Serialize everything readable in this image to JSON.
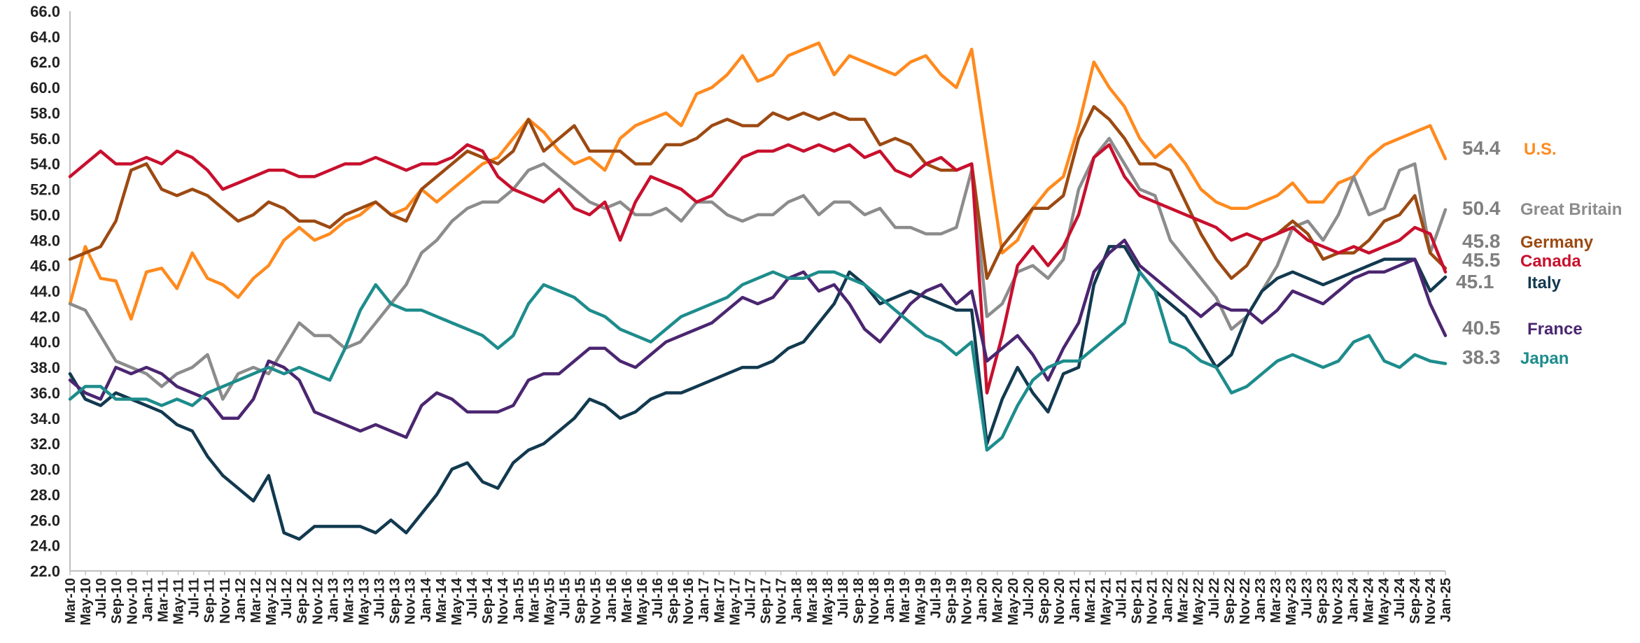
{
  "chart_data": {
    "type": "line",
    "title": "",
    "xlabel": "",
    "ylabel": "",
    "ylim": [
      22,
      66
    ],
    "y_ticks": [
      "22.0",
      "24.0",
      "26.0",
      "28.0",
      "30.0",
      "32.0",
      "34.0",
      "36.0",
      "38.0",
      "40.0",
      "42.0",
      "44.0",
      "46.0",
      "48.0",
      "50.0",
      "52.0",
      "54.0",
      "56.0",
      "58.0",
      "60.0",
      "62.0",
      "64.0",
      "66.0"
    ],
    "x_ticks": [
      "Mar-10",
      "May-10",
      "Jul-10",
      "Sep-10",
      "Nov-10",
      "Jan-11",
      "Mar-11",
      "May-11",
      "Jul-11",
      "Sep-11",
      "Nov-11",
      "Jan-12",
      "Mar-12",
      "May-12",
      "Jul-12",
      "Sep-12",
      "Nov-12",
      "Jan-13",
      "Mar-13",
      "May-13",
      "Jul-13",
      "Sep-13",
      "Nov-13",
      "Jan-14",
      "Mar-14",
      "May-14",
      "Jul-14",
      "Sep-14",
      "Nov-14",
      "Jan-15",
      "Mar-15",
      "May-15",
      "Jul-15",
      "Sep-15",
      "Nov-15",
      "Jan-16",
      "Mar-16",
      "May-16",
      "Jul-16",
      "Sep-16",
      "Nov-16",
      "Jan-17",
      "Mar-17",
      "May-17",
      "Jul-17",
      "Sep-17",
      "Nov-17",
      "Jan-18",
      "Mar-18",
      "May-18",
      "Jul-18",
      "Sep-18",
      "Nov-18",
      "Jan-19",
      "Mar-19",
      "May-19",
      "Jul-19",
      "Sep-19",
      "Nov-19",
      "Jan-20",
      "Mar-20",
      "May-20",
      "Jul-20",
      "Sep-20",
      "Nov-20",
      "Jan-21",
      "Mar-21",
      "May-21",
      "Jul-21",
      "Sep-21",
      "Nov-21",
      "Jan-22",
      "Mar-22",
      "May-22",
      "Jul-22",
      "Sep-22",
      "Nov-22",
      "Jan-23",
      "Mar-23",
      "May-23",
      "Jul-23",
      "Sep-23",
      "Nov-23",
      "Jan-24",
      "Mar-24",
      "May-24",
      "Jul-24",
      "Sep-24",
      "Nov-24",
      "Jan-25"
    ],
    "x_step_note": "bimonthly",
    "grid": false,
    "legend": "end-labels-right",
    "series": [
      {
        "name": "U.S.",
        "end_value": "54.4",
        "color": "#ff8a1e",
        "values": [
          43.0,
          47.5,
          45.0,
          44.8,
          41.8,
          45.5,
          45.8,
          44.2,
          47.0,
          45.0,
          44.5,
          43.5,
          45.0,
          46.0,
          48.0,
          49.0,
          48.0,
          48.5,
          49.5,
          50.0,
          51.0,
          50.0,
          50.5,
          52.0,
          51.0,
          52.0,
          53.0,
          54.0,
          54.5,
          56.0,
          57.5,
          56.5,
          55.0,
          54.0,
          54.5,
          53.5,
          56.0,
          57.0,
          57.5,
          58.0,
          57.0,
          59.5,
          60.0,
          61.0,
          62.5,
          60.5,
          61.0,
          62.5,
          63.0,
          63.5,
          61.0,
          62.5,
          62.0,
          61.5,
          61.0,
          62.0,
          62.5,
          61.0,
          60.0,
          63.0,
          55.0,
          47.0,
          48.0,
          50.5,
          52.0,
          53.0,
          57.0,
          62.0,
          60.0,
          58.5,
          56.0,
          54.5,
          55.5,
          54.0,
          52.0,
          51.0,
          50.5,
          50.5,
          51.0,
          51.5,
          52.5,
          51.0,
          51.0,
          52.5,
          53.0,
          54.5,
          55.5,
          56.0,
          56.5,
          57.0,
          54.4
        ]
      },
      {
        "name": "Great Britain",
        "end_value": "50.4",
        "color": "#8c8c8c",
        "values": [
          43.0,
          42.5,
          40.5,
          38.5,
          38.0,
          37.5,
          36.5,
          37.5,
          38.0,
          39.0,
          35.5,
          37.5,
          38.0,
          37.5,
          39.5,
          41.5,
          40.5,
          40.5,
          39.5,
          40.0,
          41.5,
          43.0,
          44.5,
          47.0,
          48.0,
          49.5,
          50.5,
          51.0,
          51.0,
          52.0,
          53.5,
          54.0,
          53.0,
          52.0,
          51.0,
          50.5,
          51.0,
          50.0,
          50.0,
          50.5,
          49.5,
          51.0,
          51.0,
          50.0,
          49.5,
          50.0,
          50.0,
          51.0,
          51.5,
          50.0,
          51.0,
          51.0,
          50.0,
          50.5,
          49.0,
          49.0,
          48.5,
          48.5,
          49.0,
          53.5,
          42.0,
          43.0,
          45.5,
          46.0,
          45.0,
          46.5,
          52.0,
          54.5,
          56.0,
          54.0,
          52.0,
          51.5,
          48.0,
          46.5,
          45.0,
          43.5,
          41.0,
          42.0,
          44.0,
          46.0,
          49.0,
          49.5,
          48.0,
          50.0,
          53.0,
          50.0,
          50.5,
          53.5,
          54.0,
          47.0,
          50.4
        ]
      },
      {
        "name": "Germany",
        "end_value": "45.8",
        "color": "#9c4a12",
        "values": [
          46.5,
          47.0,
          47.5,
          49.5,
          53.5,
          54.0,
          52.0,
          51.5,
          52.0,
          51.5,
          50.5,
          49.5,
          50.0,
          51.0,
          50.5,
          49.5,
          49.5,
          49.0,
          50.0,
          50.5,
          51.0,
          50.0,
          49.5,
          52.0,
          53.0,
          54.0,
          55.0,
          54.5,
          54.0,
          55.0,
          57.5,
          55.0,
          56.0,
          57.0,
          55.0,
          55.0,
          55.0,
          54.0,
          54.0,
          55.5,
          55.5,
          56.0,
          57.0,
          57.5,
          57.0,
          57.0,
          58.0,
          57.5,
          58.0,
          57.5,
          58.0,
          57.5,
          57.5,
          55.5,
          56.0,
          55.5,
          54.0,
          53.5,
          53.5,
          54.0,
          45.0,
          47.5,
          49.0,
          50.5,
          50.5,
          51.5,
          56.0,
          58.5,
          57.5,
          56.0,
          54.0,
          54.0,
          53.5,
          51.0,
          48.5,
          46.5,
          45.0,
          46.0,
          48.0,
          48.5,
          49.5,
          48.5,
          46.5,
          47.0,
          47.0,
          48.0,
          49.5,
          50.0,
          51.5,
          47.0,
          45.8
        ]
      },
      {
        "name": "Canada",
        "end_value": "45.5",
        "color": "#c8102e",
        "values": [
          53.0,
          54.0,
          55.0,
          54.0,
          54.0,
          54.5,
          54.0,
          55.0,
          54.5,
          53.5,
          52.0,
          52.5,
          53.0,
          53.5,
          53.5,
          53.0,
          53.0,
          53.5,
          54.0,
          54.0,
          54.5,
          54.0,
          53.5,
          54.0,
          54.0,
          54.5,
          55.5,
          55.0,
          53.0,
          52.0,
          51.5,
          51.0,
          52.0,
          50.5,
          50.0,
          51.0,
          48.0,
          51.0,
          53.0,
          52.5,
          52.0,
          51.0,
          51.5,
          53.0,
          54.5,
          55.0,
          55.0,
          55.5,
          55.0,
          55.5,
          55.0,
          55.5,
          54.5,
          55.0,
          53.5,
          53.0,
          54.0,
          54.5,
          53.5,
          54.0,
          36.0,
          40.5,
          46.0,
          47.5,
          46.0,
          47.5,
          50.0,
          54.5,
          55.5,
          53.0,
          51.5,
          51.0,
          50.5,
          50.0,
          49.5,
          49.0,
          48.0,
          48.5,
          48.0,
          48.5,
          49.0,
          48.0,
          47.5,
          47.0,
          47.5,
          47.0,
          47.5,
          48.0,
          49.0,
          48.5,
          45.5
        ]
      },
      {
        "name": "Italy",
        "end_value": "45.1",
        "color": "#12394f",
        "values": [
          37.5,
          35.5,
          35.0,
          36.0,
          35.5,
          35.0,
          34.5,
          33.5,
          33.0,
          31.0,
          29.5,
          28.5,
          27.5,
          29.5,
          25.0,
          24.5,
          25.5,
          25.5,
          25.5,
          25.5,
          25.0,
          26.0,
          25.0,
          26.5,
          28.0,
          30.0,
          30.5,
          29.0,
          28.5,
          30.5,
          31.5,
          32.0,
          33.0,
          34.0,
          35.5,
          35.0,
          34.0,
          34.5,
          35.5,
          36.0,
          36.0,
          36.5,
          37.0,
          37.5,
          38.0,
          38.0,
          38.5,
          39.5,
          40.0,
          41.5,
          43.0,
          45.5,
          44.5,
          43.0,
          43.5,
          44.0,
          43.5,
          43.0,
          42.5,
          42.5,
          32.0,
          35.5,
          38.0,
          36.0,
          34.5,
          37.5,
          38.0,
          44.5,
          47.5,
          47.5,
          45.5,
          44.0,
          43.0,
          42.0,
          40.0,
          38.0,
          39.0,
          42.0,
          44.0,
          45.0,
          45.5,
          45.0,
          44.5,
          45.0,
          45.5,
          46.0,
          46.5,
          46.5,
          46.5,
          44.0,
          45.1
        ]
      },
      {
        "name": "France",
        "end_value": "40.5",
        "color": "#4b2670",
        "values": [
          37.0,
          36.0,
          35.5,
          38.0,
          37.5,
          38.0,
          37.5,
          36.5,
          36.0,
          35.5,
          34.0,
          34.0,
          35.5,
          38.5,
          38.0,
          37.0,
          34.5,
          34.0,
          33.5,
          33.0,
          33.5,
          33.0,
          32.5,
          35.0,
          36.0,
          35.5,
          34.5,
          34.5,
          34.5,
          35.0,
          37.0,
          37.5,
          37.5,
          38.5,
          39.5,
          39.5,
          38.5,
          38.0,
          39.0,
          40.0,
          40.5,
          41.0,
          41.5,
          42.5,
          43.5,
          43.0,
          43.5,
          45.0,
          45.5,
          44.0,
          44.5,
          43.0,
          41.0,
          40.0,
          41.5,
          43.0,
          44.0,
          44.5,
          43.0,
          44.0,
          38.5,
          39.5,
          40.5,
          39.0,
          37.0,
          39.5,
          41.5,
          45.5,
          47.0,
          48.0,
          46.0,
          45.0,
          44.0,
          43.0,
          42.0,
          43.0,
          42.5,
          42.5,
          41.5,
          42.5,
          44.0,
          43.5,
          43.0,
          44.0,
          45.0,
          45.5,
          45.5,
          46.0,
          46.5,
          43.0,
          40.5
        ]
      },
      {
        "name": "Japan",
        "end_value": "38.3",
        "color": "#1e8c8c",
        "values": [
          35.5,
          36.5,
          36.5,
          35.5,
          35.5,
          35.5,
          35.0,
          35.5,
          35.0,
          36.0,
          36.5,
          37.0,
          37.5,
          38.0,
          37.5,
          38.0,
          37.5,
          37.0,
          39.5,
          42.5,
          44.5,
          43.0,
          42.5,
          42.5,
          42.0,
          41.5,
          41.0,
          40.5,
          39.5,
          40.5,
          43.0,
          44.5,
          44.0,
          43.5,
          42.5,
          42.0,
          41.0,
          40.5,
          40.0,
          41.0,
          42.0,
          42.5,
          43.0,
          43.5,
          44.5,
          45.0,
          45.5,
          45.0,
          45.0,
          45.5,
          45.5,
          45.0,
          44.5,
          43.5,
          42.5,
          41.5,
          40.5,
          40.0,
          39.0,
          40.0,
          31.5,
          32.5,
          35.0,
          37.0,
          38.0,
          38.5,
          38.5,
          39.5,
          40.5,
          41.5,
          45.5,
          44.0,
          40.0,
          39.5,
          38.5,
          38.0,
          36.0,
          36.5,
          37.5,
          38.5,
          39.0,
          38.5,
          38.0,
          38.5,
          40.0,
          40.5,
          38.5,
          38.0,
          39.0,
          38.5,
          38.3
        ]
      }
    ]
  }
}
